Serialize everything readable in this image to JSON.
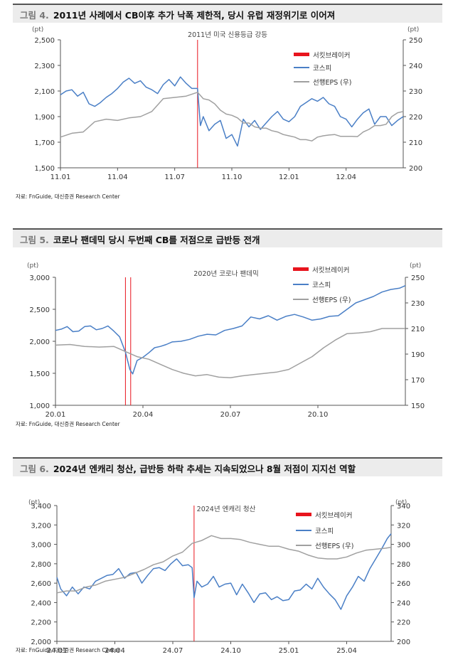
{
  "charts": [
    {
      "fig_label": "그림 4.",
      "title": "2011년 사례에서 CB이후 추가 낙폭 제한적, 당시 유럽 재정위기로 이어져",
      "source": "자료: FnGuide, 대신증권 Research Center",
      "annotation": "2011년 미국 신용등급 강등"
    },
    {
      "fig_label": "그림 5.",
      "title": "코로나 팬데믹 당시 두번째 CB를 저점으로 급반등 전개",
      "source": "자료: FnGuide, 대신증권 Research Center",
      "annotation": "2020년 코로나 팬데믹"
    },
    {
      "fig_label": "그림 6.",
      "title": "2024년 엔캐리 청산, 급반등 하락 추세는 지속되었으나 8월 저점이 지지선 역할",
      "source": "자료: FnGuide, 대신증권 Research Center",
      "annotation": "2024년 엔캐리 청산"
    }
  ],
  "chart_data": [
    {
      "type": "line",
      "left_unit": "(pt)",
      "right_unit": "(pt)",
      "x_ticks": [
        "11.01",
        "11.04",
        "11.07",
        "11.10",
        "12.01",
        "12.04"
      ],
      "x_tick_pos": [
        0,
        3,
        6,
        9,
        12,
        15
      ],
      "x_range": [
        0,
        18
      ],
      "ylim_left": [
        1500,
        2500
      ],
      "yticks_left": [
        1500,
        1700,
        1900,
        2100,
        2300,
        2500
      ],
      "ytick_labels_left": [
        "1,500",
        "1,700",
        "1,900",
        "2,100",
        "2,300",
        "2,500"
      ],
      "ylim_right": [
        200,
        250
      ],
      "yticks_right": [
        200,
        210,
        220,
        230,
        240,
        250
      ],
      "ytick_labels_right": [
        "200",
        "210",
        "220",
        "230",
        "240",
        "250"
      ],
      "legend": [
        {
          "name": "서킷브레이커",
          "color": "#e8141d",
          "kind": "bar"
        },
        {
          "name": "코스피",
          "color": "#4a7fc6",
          "kind": "line"
        },
        {
          "name": "선행EPS (우)",
          "color": "#a0a0a0",
          "kind": "line"
        }
      ],
      "circuit_breakers": [
        7.2
      ],
      "series": [
        {
          "name": "코스피",
          "axis": "left",
          "color": "#4a7fc6",
          "x": [
            0,
            0.3,
            0.6,
            0.9,
            1.2,
            1.5,
            1.8,
            2.1,
            2.4,
            2.7,
            3.0,
            3.3,
            3.6,
            3.9,
            4.2,
            4.5,
            4.8,
            5.1,
            5.4,
            5.7,
            6.0,
            6.3,
            6.6,
            6.9,
            7.2,
            7.35,
            7.5,
            7.8,
            8.1,
            8.4,
            8.7,
            9.0,
            9.3,
            9.6,
            9.9,
            10.2,
            10.5,
            10.8,
            11.1,
            11.4,
            11.7,
            12.0,
            12.3,
            12.6,
            12.9,
            13.2,
            13.5,
            13.8,
            14.1,
            14.4,
            14.7,
            15.0,
            15.3,
            15.6,
            15.9,
            16.2,
            16.5,
            16.8,
            17.1,
            17.4,
            17.7,
            18.0
          ],
          "y": [
            2070,
            2100,
            2110,
            2060,
            2090,
            2000,
            1980,
            2010,
            2050,
            2080,
            2120,
            2170,
            2200,
            2160,
            2180,
            2130,
            2110,
            2080,
            2150,
            2190,
            2140,
            2210,
            2160,
            2120,
            2120,
            1830,
            1900,
            1790,
            1840,
            1870,
            1730,
            1760,
            1670,
            1880,
            1820,
            1870,
            1800,
            1850,
            1900,
            1940,
            1880,
            1860,
            1900,
            1980,
            2010,
            2040,
            2020,
            2050,
            2000,
            1980,
            1900,
            1880,
            1820,
            1880,
            1930,
            1960,
            1840,
            1900,
            1900,
            1830,
            1870,
            1900
          ]
        },
        {
          "name": "선행EPS (우)",
          "axis": "right",
          "color": "#a0a0a0",
          "x": [
            0,
            0.6,
            1.2,
            1.8,
            2.4,
            3.0,
            3.6,
            4.2,
            4.8,
            5.4,
            6.0,
            6.6,
            7.2,
            7.5,
            7.8,
            8.1,
            8.4,
            8.7,
            9.0,
            9.3,
            9.6,
            9.9,
            10.2,
            10.5,
            10.8,
            11.1,
            11.4,
            11.7,
            12.0,
            12.3,
            12.6,
            12.9,
            13.2,
            13.5,
            13.8,
            14.1,
            14.4,
            14.7,
            15.0,
            15.3,
            15.6,
            15.9,
            16.2,
            16.5,
            16.8,
            17.1,
            17.4,
            17.7,
            18.0
          ],
          "y": [
            212,
            213.5,
            214,
            218,
            219,
            218.5,
            219.5,
            220,
            222,
            227,
            227.5,
            228,
            229.5,
            227,
            226.5,
            225,
            222.5,
            221,
            220.5,
            219.5,
            217.5,
            217.5,
            216,
            215.5,
            215.5,
            214.5,
            214,
            213,
            212.5,
            212,
            211,
            211,
            210.5,
            212,
            212.5,
            212.8,
            213,
            212.3,
            212.3,
            212.3,
            212.2,
            214,
            215,
            216.5,
            216.5,
            217,
            220,
            221.5,
            222
          ]
        }
      ]
    },
    {
      "type": "line",
      "left_unit": "(pt)",
      "right_unit": "(pt)",
      "x_ticks": [
        "20.01",
        "20.04",
        "20.07",
        "20.10"
      ],
      "x_tick_pos": [
        0,
        3,
        6,
        9
      ],
      "x_range": [
        0,
        12
      ],
      "ylim_left": [
        1000,
        3000
      ],
      "yticks_left": [
        1000,
        1500,
        2000,
        2500,
        3000
      ],
      "ytick_labels_left": [
        "1,000",
        "1,500",
        "2,000",
        "2,500",
        "3,000"
      ],
      "ylim_right": [
        150,
        250
      ],
      "yticks_right": [
        150,
        170,
        190,
        210,
        230,
        250
      ],
      "ytick_labels_right": [
        "150",
        "170",
        "190",
        "210",
        "230",
        "250"
      ],
      "legend": [
        {
          "name": "서킷브레이커",
          "color": "#e8141d",
          "kind": "bar"
        },
        {
          "name": "코스피",
          "color": "#4a7fc6",
          "kind": "line"
        },
        {
          "name": "선행EPS (우)",
          "color": "#a0a0a0",
          "kind": "line"
        }
      ],
      "circuit_breakers": [
        2.4,
        2.58
      ],
      "series": [
        {
          "name": "코스피",
          "axis": "left",
          "color": "#4a7fc6",
          "x": [
            0,
            0.2,
            0.4,
            0.6,
            0.8,
            1.0,
            1.2,
            1.4,
            1.6,
            1.8,
            2.0,
            2.2,
            2.4,
            2.55,
            2.65,
            2.8,
            3.0,
            3.2,
            3.4,
            3.6,
            3.8,
            4.0,
            4.3,
            4.6,
            4.9,
            5.2,
            5.5,
            5.8,
            6.1,
            6.4,
            6.7,
            7.0,
            7.3,
            7.6,
            7.9,
            8.2,
            8.5,
            8.8,
            9.1,
            9.4,
            9.7,
            10.0,
            10.3,
            10.6,
            10.9,
            11.2,
            11.5,
            11.8,
            12.0
          ],
          "y": [
            2170,
            2190,
            2230,
            2150,
            2160,
            2230,
            2240,
            2180,
            2200,
            2240,
            2160,
            2070,
            1830,
            1560,
            1490,
            1700,
            1750,
            1820,
            1900,
            1920,
            1950,
            1990,
            2000,
            2030,
            2080,
            2110,
            2100,
            2170,
            2200,
            2240,
            2380,
            2350,
            2400,
            2330,
            2390,
            2420,
            2380,
            2330,
            2350,
            2390,
            2400,
            2500,
            2600,
            2650,
            2700,
            2770,
            2810,
            2830,
            2870
          ]
        },
        {
          "name": "선행EPS (우)",
          "axis": "right",
          "color": "#a0a0a0",
          "x": [
            0,
            0.5,
            1.0,
            1.5,
            2.0,
            2.4,
            2.8,
            3.2,
            3.6,
            4.0,
            4.4,
            4.8,
            5.2,
            5.6,
            6.0,
            6.4,
            6.8,
            7.2,
            7.6,
            8.0,
            8.4,
            8.8,
            9.2,
            9.6,
            10.0,
            10.4,
            10.8,
            11.2,
            11.6,
            12.0
          ],
          "y": [
            197,
            197.5,
            196,
            195.5,
            196,
            192,
            188,
            186,
            182,
            178,
            175,
            173,
            174,
            172,
            171.5,
            173,
            174,
            175,
            176,
            178,
            183,
            188,
            195,
            201,
            206,
            206.5,
            207.5,
            210,
            210,
            210
          ]
        }
      ]
    },
    {
      "type": "line",
      "left_unit": "(pt)",
      "right_unit": "(pt)",
      "x_ticks": [
        "24.01",
        "24.04",
        "24.07",
        "24.10",
        "25.01",
        "25.04"
      ],
      "x_tick_pos": [
        0,
        3,
        6,
        9,
        12,
        15
      ],
      "x_range": [
        0,
        17.3
      ],
      "ylim_left": [
        2000,
        3400
      ],
      "yticks_left": [
        2000,
        2200,
        2400,
        2600,
        2800,
        3000,
        3200,
        3400
      ],
      "ytick_labels_left": [
        "2,000",
        "2,200",
        "2,400",
        "2,600",
        "2,800",
        "3,000",
        "3,200",
        "3,400"
      ],
      "ylim_right": [
        200,
        340
      ],
      "yticks_right": [
        200,
        220,
        240,
        260,
        280,
        300,
        320,
        340
      ],
      "ytick_labels_right": [
        "200",
        "220",
        "240",
        "260",
        "280",
        "300",
        "320",
        "340"
      ],
      "legend": [
        {
          "name": "서킷브레이커",
          "color": "#e8141d",
          "kind": "bar"
        },
        {
          "name": "코스피",
          "color": "#4a7fc6",
          "kind": "line"
        },
        {
          "name": "선행EPS (우)",
          "color": "#a0a0a0",
          "kind": "line"
        }
      ],
      "circuit_breakers": [
        7.1
      ],
      "series": [
        {
          "name": "코스피",
          "axis": "left",
          "color": "#4a7fc6",
          "x": [
            0,
            0.2,
            0.5,
            0.8,
            1.1,
            1.4,
            1.7,
            2.0,
            2.3,
            2.6,
            2.9,
            3.2,
            3.5,
            3.8,
            4.1,
            4.4,
            4.7,
            5.0,
            5.3,
            5.6,
            5.9,
            6.2,
            6.5,
            6.8,
            7.0,
            7.1,
            7.25,
            7.5,
            7.8,
            8.1,
            8.4,
            8.7,
            9.0,
            9.3,
            9.6,
            9.9,
            10.2,
            10.5,
            10.8,
            11.1,
            11.4,
            11.7,
            12.0,
            12.3,
            12.6,
            12.9,
            13.2,
            13.5,
            13.8,
            14.1,
            14.4,
            14.7,
            15.0,
            15.3,
            15.6,
            15.9,
            16.2,
            16.5,
            16.8,
            17.1,
            17.3
          ],
          "y": [
            2660,
            2540,
            2470,
            2560,
            2490,
            2560,
            2540,
            2620,
            2650,
            2680,
            2690,
            2750,
            2650,
            2700,
            2710,
            2600,
            2680,
            2750,
            2760,
            2730,
            2800,
            2850,
            2780,
            2790,
            2760,
            2450,
            2620,
            2560,
            2590,
            2670,
            2560,
            2590,
            2600,
            2480,
            2590,
            2500,
            2400,
            2490,
            2500,
            2430,
            2460,
            2420,
            2430,
            2520,
            2530,
            2590,
            2540,
            2650,
            2560,
            2490,
            2430,
            2330,
            2470,
            2560,
            2670,
            2620,
            2750,
            2850,
            2950,
            3060,
            3110
          ]
        },
        {
          "name": "선행EPS (우)",
          "axis": "right",
          "color": "#a0a0a0",
          "x": [
            0,
            0.5,
            1.0,
            1.5,
            2.0,
            2.5,
            3.0,
            3.5,
            4.0,
            4.5,
            5.0,
            5.5,
            6.0,
            6.5,
            7.0,
            7.5,
            8.0,
            8.5,
            9.0,
            9.5,
            10.0,
            10.5,
            11.0,
            11.5,
            12.0,
            12.5,
            13.0,
            13.5,
            14.0,
            14.5,
            15.0,
            15.5,
            16.0,
            16.5,
            17.0,
            17.3
          ],
          "y": [
            250,
            252,
            252,
            256,
            258,
            262,
            264,
            266,
            270,
            274,
            279,
            282,
            288,
            292,
            301,
            304,
            309,
            306,
            306,
            305,
            302,
            300,
            298,
            298,
            295,
            293,
            289,
            286,
            285,
            285,
            287,
            291,
            294,
            295,
            296,
            297
          ]
        }
      ]
    }
  ]
}
